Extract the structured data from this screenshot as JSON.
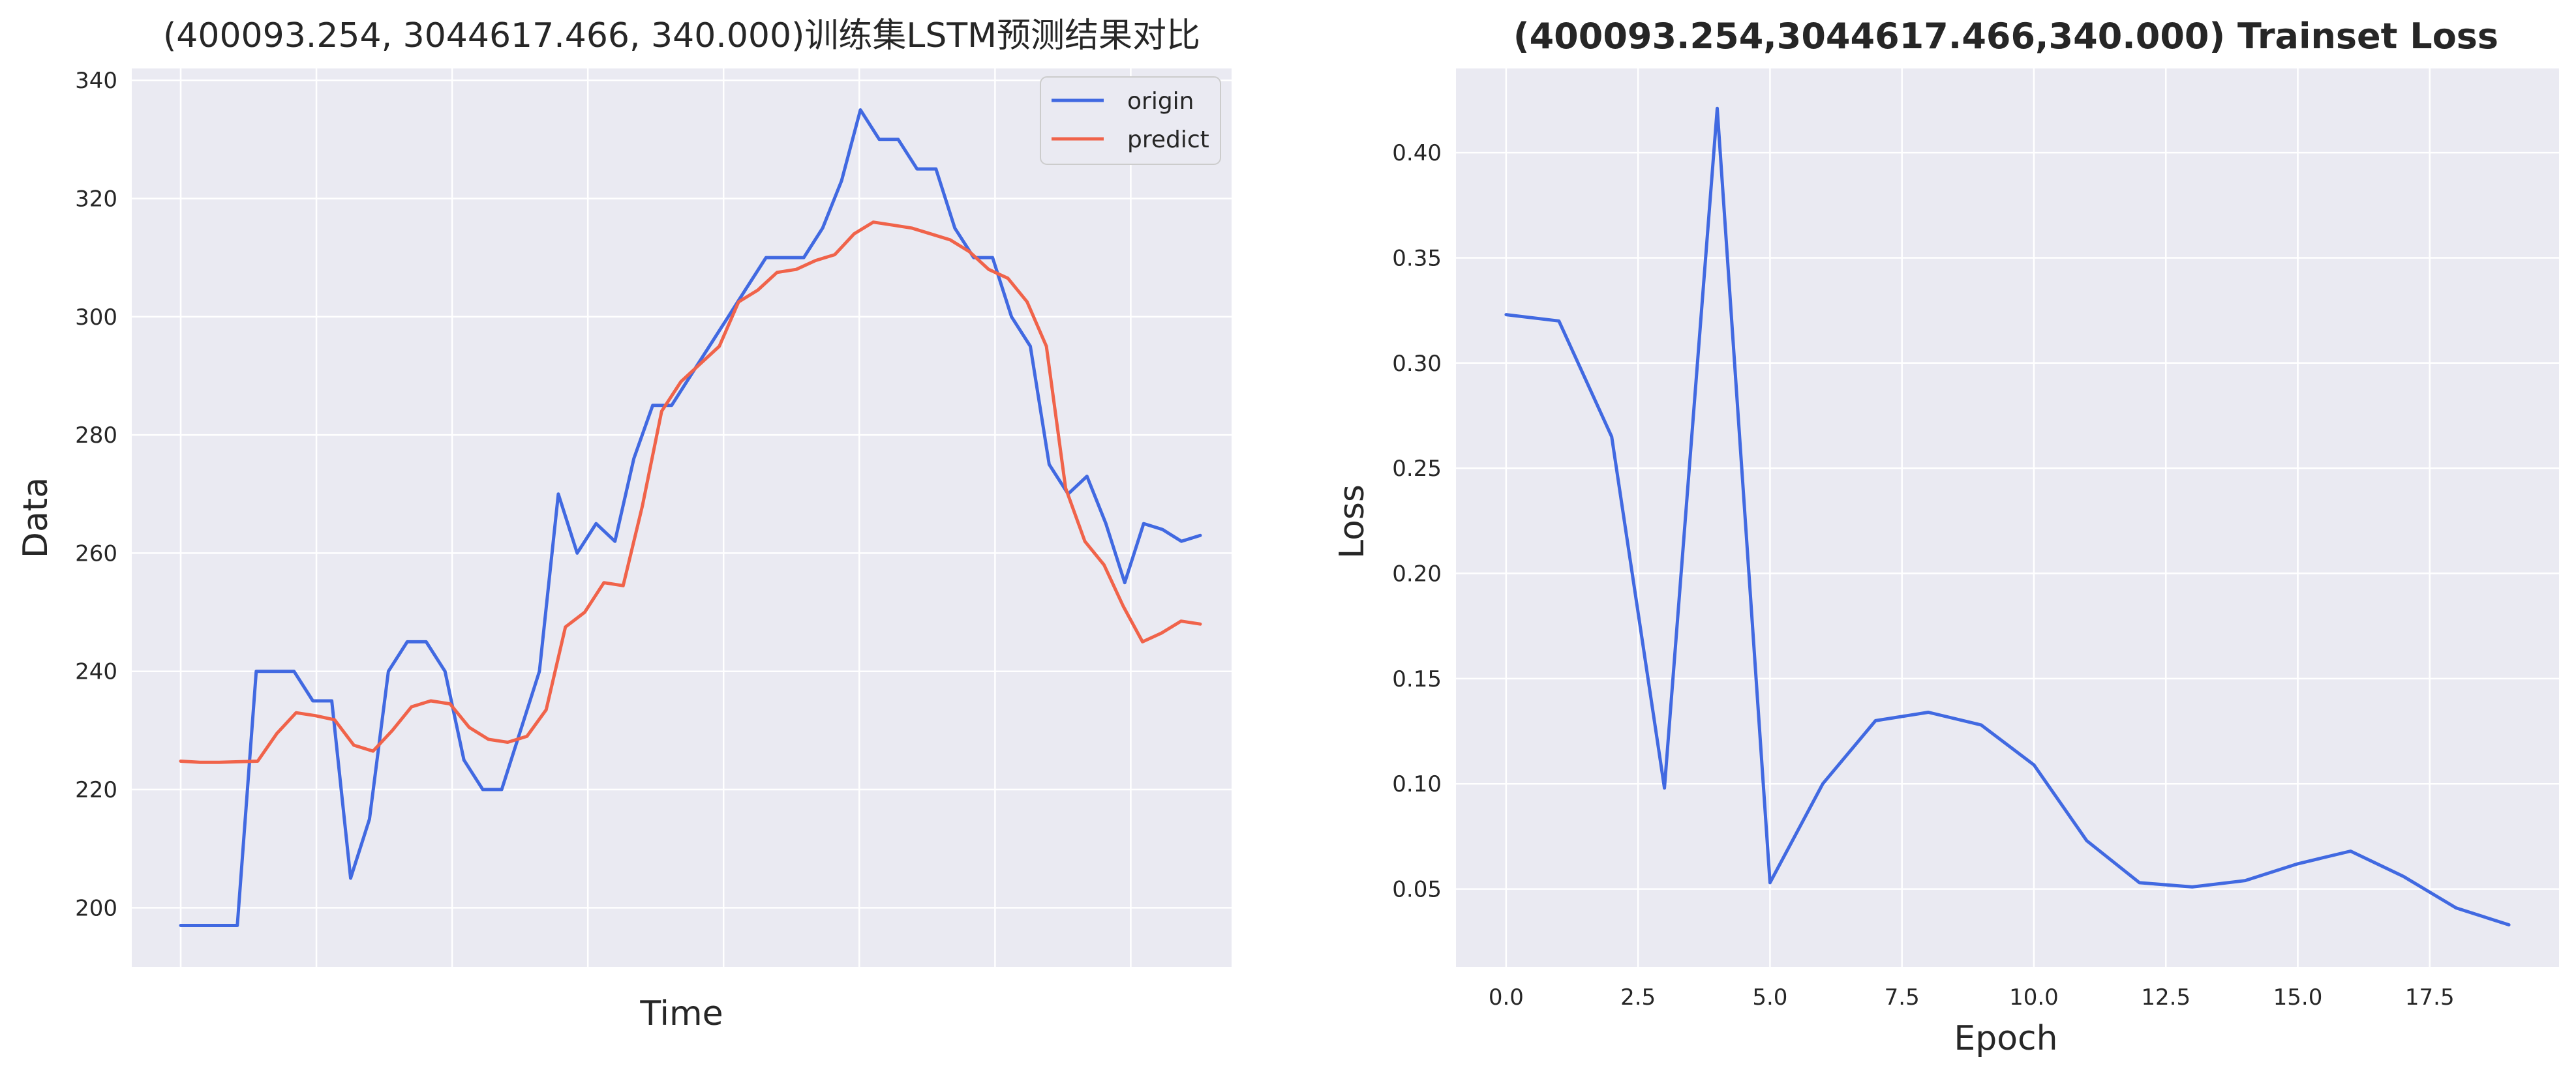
{
  "chart_data": [
    {
      "type": "line",
      "title": "(400093.254, 3044617.466, 340.000)训练集LSTM预测结果对比",
      "xlabel": "Time",
      "ylabel": "Data",
      "ylim": [
        190,
        342
      ],
      "yticks": [
        200,
        220,
        240,
        260,
        280,
        300,
        320,
        340
      ],
      "grid": true,
      "legend_position": "top-right",
      "series": [
        {
          "name": "origin",
          "color": "#4169E1",
          "values": [
            197,
            197,
            197,
            197,
            240,
            240,
            240,
            235,
            235,
            205,
            215,
            240,
            245,
            245,
            240,
            225,
            220,
            220,
            230,
            240,
            270,
            260,
            265,
            262,
            276,
            285,
            285,
            290,
            295,
            300,
            305,
            310,
            310,
            310,
            315,
            323,
            335,
            330,
            330,
            325,
            325,
            315,
            310,
            310,
            300,
            295,
            275,
            270,
            273,
            265,
            255,
            265,
            264,
            262,
            263
          ]
        },
        {
          "name": "predict",
          "color": "#F0634A",
          "values": [
            224.8,
            224.6,
            224.6,
            224.7,
            224.8,
            229.5,
            233.0,
            232.5,
            231.8,
            227.5,
            226.5,
            230.0,
            234.0,
            235.0,
            234.5,
            230.5,
            228.5,
            228.0,
            229.0,
            233.5,
            247.5,
            250.0,
            255.0,
            254.5,
            268.0,
            284.0,
            289.0,
            292.0,
            295.0,
            302.5,
            304.5,
            307.5,
            308.0,
            309.5,
            310.5,
            314.0,
            316.0,
            315.5,
            315.0,
            314.0,
            313.0,
            311.0,
            308.0,
            306.5,
            302.5,
            295.0,
            271.0,
            262.0,
            258.0,
            251.0,
            245.0,
            246.5,
            248.5,
            248.0
          ]
        }
      ]
    },
    {
      "type": "line",
      "title": "(400093.254,3044617.466,340.000) Trainset Loss",
      "xlabel": "Epoch",
      "ylabel": "Loss",
      "xlim": [
        -0.95,
        19.95
      ],
      "ylim": [
        0.013,
        0.44
      ],
      "xticks": [
        "0.0",
        "2.5",
        "5.0",
        "7.5",
        "10.0",
        "12.5",
        "15.0",
        "17.5"
      ],
      "yticks": [
        "0.05",
        "0.10",
        "0.15",
        "0.20",
        "0.25",
        "0.30",
        "0.35",
        "0.40"
      ],
      "grid": true,
      "series": [
        {
          "name": "",
          "color": "#4169E1",
          "x": [
            0,
            1,
            2,
            3,
            4,
            5,
            6,
            7,
            8,
            9,
            10,
            11,
            12,
            13,
            14,
            15,
            16,
            17,
            18,
            19
          ],
          "values": [
            0.323,
            0.32,
            0.265,
            0.098,
            0.421,
            0.053,
            0.1,
            0.13,
            0.134,
            0.128,
            0.109,
            0.073,
            0.053,
            0.051,
            0.054,
            0.062,
            0.068,
            0.056,
            0.041,
            0.033
          ]
        }
      ]
    }
  ]
}
